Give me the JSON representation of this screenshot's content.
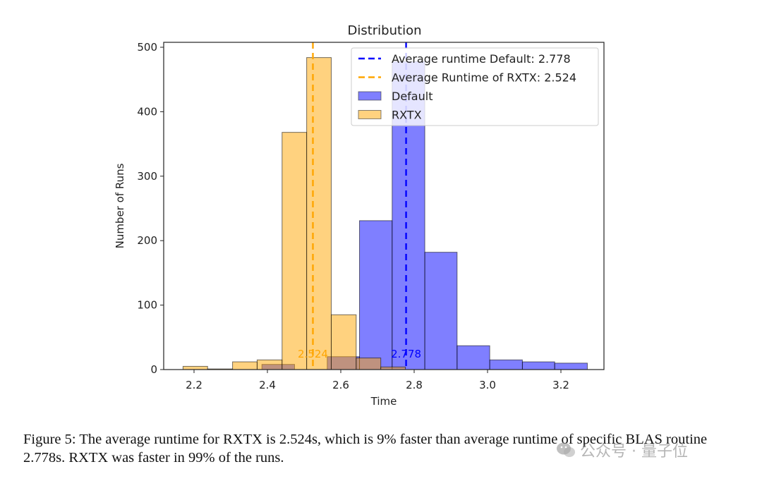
{
  "chart_data": {
    "type": "bar",
    "subtype": "overlapping-histogram",
    "title": "Distribution",
    "xlabel": "Time",
    "ylabel": "Number of Runs",
    "xlim": [
      2.13,
      3.31
    ],
    "ylim": [
      0,
      505
    ],
    "xticks": [
      2.2,
      2.4,
      2.6,
      2.8,
      3.0,
      3.2
    ],
    "xtick_labels": [
      "2.2",
      "2.4",
      "2.6",
      "2.8",
      "3.0",
      "3.2"
    ],
    "yticks": [
      0,
      100,
      200,
      300,
      400,
      500
    ],
    "ytick_labels": [
      "0",
      "100",
      "200",
      "300",
      "400",
      "500"
    ],
    "grid": false,
    "legend_position": "top-right",
    "series": [
      {
        "name": "Default",
        "color": "#0000ff",
        "alpha": 0.5,
        "bin_edges": [
          2.385,
          2.474,
          2.563,
          2.651,
          2.74,
          2.829,
          2.917,
          3.006,
          3.095,
          3.183,
          3.272
        ],
        "values": [
          8,
          0,
          20,
          231,
          478,
          182,
          37,
          15,
          12,
          10
        ]
      },
      {
        "name": "RXTX",
        "color": "#ffa500",
        "alpha": 0.5,
        "bin_edges": [
          2.17,
          2.237,
          2.305,
          2.372,
          2.44,
          2.507,
          2.574,
          2.642,
          2.709,
          2.776
        ],
        "values": [
          5,
          1,
          12,
          15,
          368,
          484,
          85,
          18,
          4
        ]
      }
    ],
    "vlines": [
      {
        "label": "Average runtime Default: 2.778",
        "x": 2.778,
        "color": "#0000ff",
        "style": "dashed",
        "annotation": "2.778"
      },
      {
        "label": "Average Runtime of RXTX: 2.524",
        "x": 2.524,
        "color": "#ffa500",
        "style": "dashed",
        "annotation": "2.524"
      }
    ],
    "legend": [
      {
        "label": "Average runtime Default: 2.778",
        "kind": "line",
        "color": "#0000ff"
      },
      {
        "label": "Average Runtime of RXTX: 2.524",
        "kind": "line",
        "color": "#ffa500"
      },
      {
        "label": "Default",
        "kind": "patch",
        "color": "#7f7fff"
      },
      {
        "label": "RXTX",
        "kind": "patch",
        "color": "#ffd27f"
      }
    ]
  },
  "caption": {
    "text": "Figure 5: The average runtime for RXTX is 2.524s, which is 9% faster than average runtime of specific BLAS routine 2.778s. RXTX was faster in 99% of the runs."
  },
  "watermark": {
    "text": "公众号 · 量子位"
  }
}
